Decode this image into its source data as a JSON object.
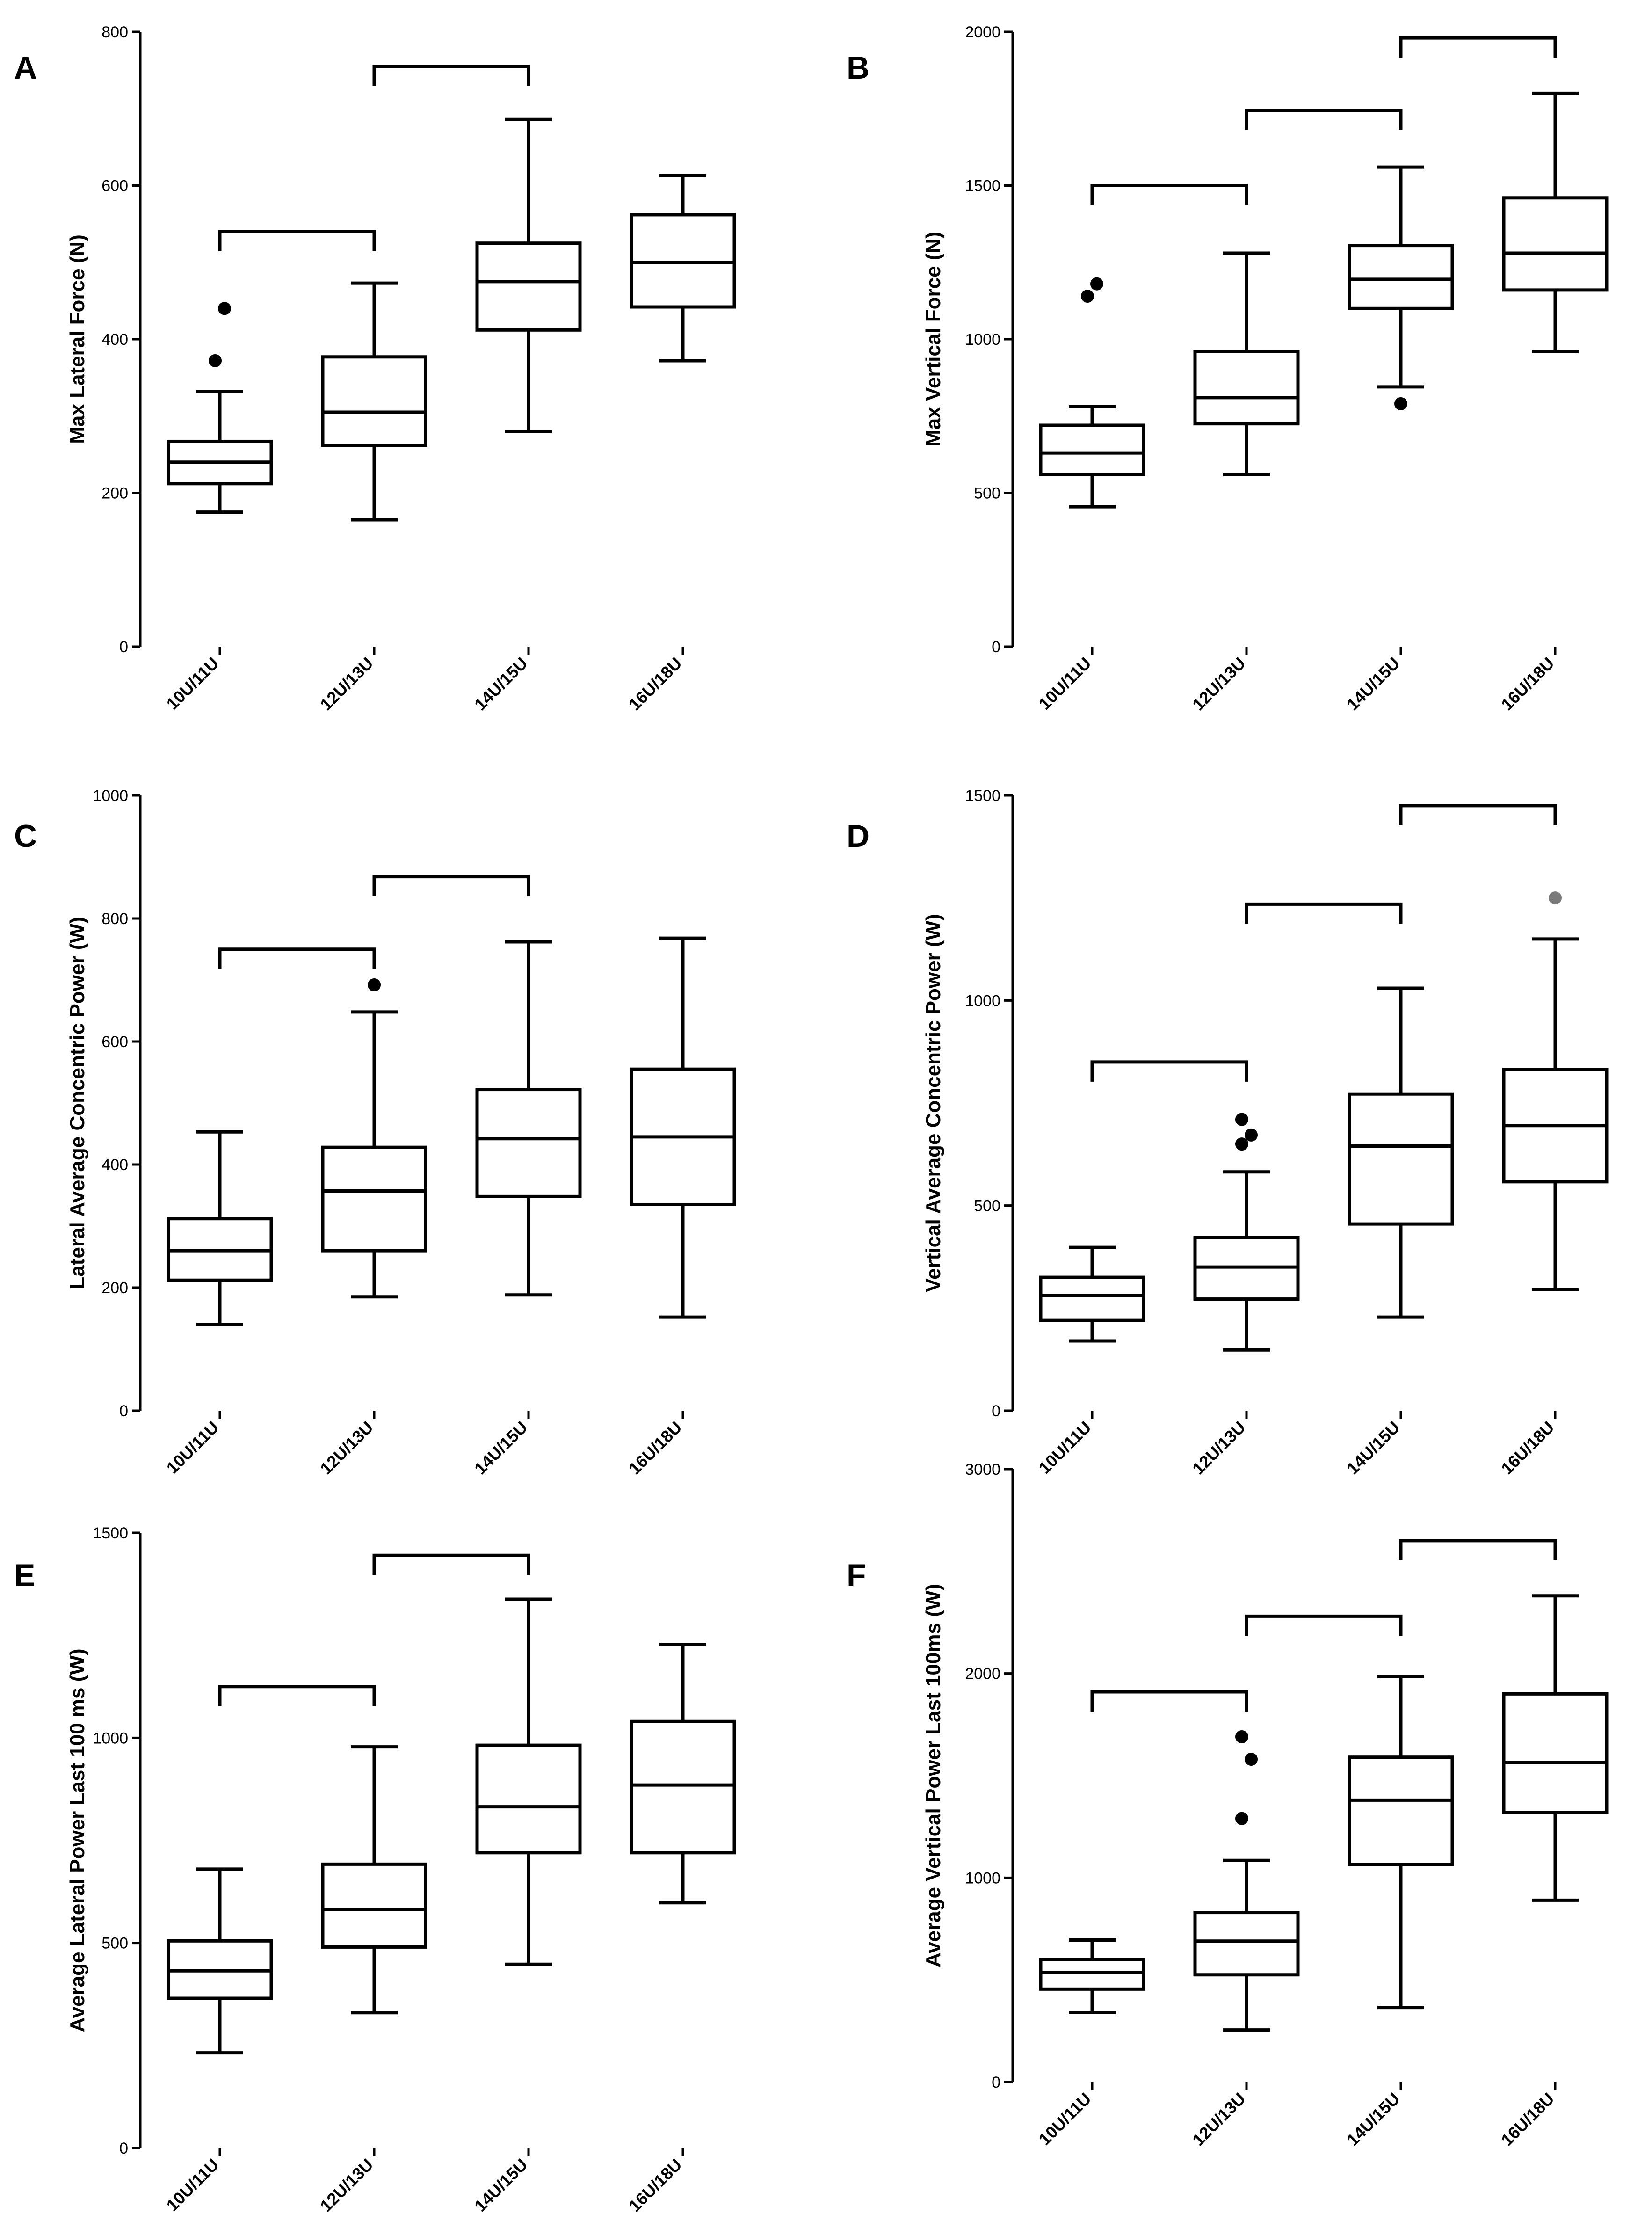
{
  "chart_data": [
    {
      "panel": "A",
      "type": "box",
      "ylabel": "Max Lateral Force (N)",
      "categories": [
        "10U/11U",
        "12U/13U",
        "14U/15U",
        "16U/18U"
      ],
      "ylim": [
        0,
        800
      ],
      "yticks": [
        0,
        200,
        400,
        600,
        800
      ],
      "boxes": [
        {
          "whisker_low": 175,
          "q1": 212,
          "median": 240,
          "q3": 267,
          "whisker_high": 332,
          "outliers": [
            372,
            440
          ]
        },
        {
          "whisker_low": 165,
          "q1": 262,
          "median": 305,
          "q3": 377,
          "whisker_high": 473,
          "outliers": []
        },
        {
          "whisker_low": 280,
          "q1": 412,
          "median": 475,
          "q3": 525,
          "whisker_high": 686,
          "outliers": []
        },
        {
          "whisker_low": 372,
          "q1": 442,
          "median": 500,
          "q3": 562,
          "whisker_high": 613,
          "outliers": []
        }
      ],
      "brackets": [
        {
          "from": 0,
          "to": 1,
          "y": 540
        },
        {
          "from": 1,
          "to": 2,
          "y": 755
        }
      ]
    },
    {
      "panel": "B",
      "type": "box",
      "ylabel": "Max Vertical Force (N)",
      "categories": [
        "10U/11U",
        "12U/13U",
        "14U/15U",
        "16U/18U"
      ],
      "ylim": [
        0,
        2000
      ],
      "yticks": [
        0,
        500,
        1000,
        1500,
        2000
      ],
      "boxes": [
        {
          "whisker_low": 455,
          "q1": 560,
          "median": 630,
          "q3": 720,
          "whisker_high": 780,
          "outliers": [
            1140,
            1180
          ]
        },
        {
          "whisker_low": 560,
          "q1": 725,
          "median": 810,
          "q3": 960,
          "whisker_high": 1280,
          "outliers": []
        },
        {
          "whisker_low": 845,
          "q1": 1100,
          "median": 1195,
          "q3": 1305,
          "whisker_high": 1560,
          "outliers": [
            790
          ]
        },
        {
          "whisker_low": 960,
          "q1": 1160,
          "median": 1280,
          "q3": 1460,
          "whisker_high": 1800,
          "outliers": []
        }
      ],
      "brackets": [
        {
          "from": 0,
          "to": 1,
          "y": 1500
        },
        {
          "from": 1,
          "to": 2,
          "y": 1745
        },
        {
          "from": 2,
          "to": 3,
          "y": 1980
        }
      ]
    },
    {
      "panel": "C",
      "type": "box",
      "ylabel": "Lateral Average Concentric Power (W)",
      "categories": [
        "10U/11U",
        "12U/13U",
        "14U/15U",
        "16U/18U"
      ],
      "ylim": [
        0,
        1000
      ],
      "yticks": [
        0,
        200,
        400,
        600,
        800,
        1000
      ],
      "boxes": [
        {
          "whisker_low": 140,
          "q1": 212,
          "median": 260,
          "q3": 312,
          "whisker_high": 453,
          "outliers": []
        },
        {
          "whisker_low": 185,
          "q1": 260,
          "median": 357,
          "q3": 428,
          "whisker_high": 648,
          "outliers": [
            692
          ]
        },
        {
          "whisker_low": 188,
          "q1": 348,
          "median": 442,
          "q3": 522,
          "whisker_high": 762,
          "outliers": []
        },
        {
          "whisker_low": 152,
          "q1": 335,
          "median": 445,
          "q3": 555,
          "whisker_high": 768,
          "outliers": []
        }
      ],
      "brackets": [
        {
          "from": 0,
          "to": 1,
          "y": 750
        },
        {
          "from": 1,
          "to": 2,
          "y": 868
        }
      ]
    },
    {
      "panel": "D",
      "type": "box",
      "ylabel": "Vertical Average Concentric Power (W)",
      "categories": [
        "10U/11U",
        "12U/13U",
        "14U/15U",
        "16U/18U"
      ],
      "ylim": [
        0,
        1500
      ],
      "yticks": [
        0,
        500,
        1000,
        1500
      ],
      "boxes": [
        {
          "whisker_low": 170,
          "q1": 220,
          "median": 280,
          "q3": 325,
          "whisker_high": 398,
          "outliers": []
        },
        {
          "whisker_low": 148,
          "q1": 272,
          "median": 350,
          "q3": 422,
          "whisker_high": 582,
          "outliers": [
            650,
            672,
            710
          ]
        },
        {
          "whisker_low": 228,
          "q1": 455,
          "median": 645,
          "q3": 772,
          "whisker_high": 1030,
          "outliers": []
        },
        {
          "whisker_low": 295,
          "q1": 558,
          "median": 695,
          "q3": 832,
          "whisker_high": 1150,
          "outliers": [
            1250
          ]
        }
      ],
      "brackets": [
        {
          "from": 0,
          "to": 1,
          "y": 850
        },
        {
          "from": 1,
          "to": 2,
          "y": 1235
        },
        {
          "from": 2,
          "to": 3,
          "y": 1475
        }
      ]
    },
    {
      "panel": "E",
      "type": "box",
      "ylabel": "Average Lateral Power Last 100 ms (W)",
      "categories": [
        "10U/11U",
        "12U/13U",
        "14U/15U",
        "16U/18U"
      ],
      "ylim": [
        0,
        1500
      ],
      "yticks": [
        0,
        500,
        1000,
        1500
      ],
      "boxes": [
        {
          "whisker_low": 232,
          "q1": 365,
          "median": 432,
          "q3": 505,
          "whisker_high": 680,
          "outliers": []
        },
        {
          "whisker_low": 330,
          "q1": 490,
          "median": 582,
          "q3": 692,
          "whisker_high": 978,
          "outliers": []
        },
        {
          "whisker_low": 448,
          "q1": 720,
          "median": 832,
          "q3": 982,
          "whisker_high": 1338,
          "outliers": []
        },
        {
          "whisker_low": 598,
          "q1": 720,
          "median": 885,
          "q3": 1040,
          "whisker_high": 1228,
          "outliers": []
        }
      ],
      "brackets": [
        {
          "from": 0,
          "to": 1,
          "y": 1125
        },
        {
          "from": 1,
          "to": 2,
          "y": 1445
        }
      ]
    },
    {
      "panel": "F",
      "type": "box",
      "ylabel": "Average Vertical Power Last 100ms (W)",
      "categories": [
        "10U/11U",
        "12U/13U",
        "14U/15U",
        "16U/18U"
      ],
      "ylim": [
        0,
        3000
      ],
      "yticks": [
        0,
        1000,
        2000,
        3000
      ],
      "boxes": [
        {
          "whisker_low": 340,
          "q1": 455,
          "median": 535,
          "q3": 600,
          "whisker_high": 695,
          "outliers": []
        },
        {
          "whisker_low": 255,
          "q1": 525,
          "median": 690,
          "q3": 830,
          "whisker_high": 1085,
          "outliers": [
            1290,
            1580,
            1690
          ]
        },
        {
          "whisker_low": 365,
          "q1": 1065,
          "median": 1380,
          "q3": 1590,
          "whisker_high": 1985,
          "outliers": []
        },
        {
          "whisker_low": 890,
          "q1": 1320,
          "median": 1565,
          "q3": 1900,
          "whisker_high": 2380,
          "outliers": []
        }
      ],
      "brackets": [
        {
          "from": 0,
          "to": 1,
          "y": 1910
        },
        {
          "from": 1,
          "to": 2,
          "y": 2280
        },
        {
          "from": 2,
          "to": 3,
          "y": 2650
        }
      ]
    }
  ],
  "colors": {
    "ink": "#000000",
    "outlier_gray": "#7a7a7a",
    "background": "#ffffff"
  }
}
